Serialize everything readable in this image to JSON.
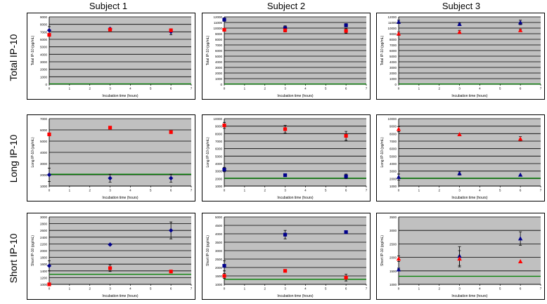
{
  "column_titles": [
    "Subject 1",
    "Subject 2",
    "Subject 3"
  ],
  "row_titles": [
    "Total IP-10",
    "Long IP-10",
    "Short IP-10"
  ],
  "colors": {
    "blue": "#00008b",
    "red": "#ff0000",
    "baseline": "#008000",
    "plot_bg": "#c0c0c0"
  },
  "chart_data": [
    {
      "type": "scatter",
      "subject": "Subject 1",
      "xlabel": "Incubation time (hours)",
      "ylabel": "Total IP-10 (pg/mL)",
      "xlim": [
        0,
        7
      ],
      "ylim": [
        0,
        9000
      ],
      "xticks": [
        0,
        1,
        2,
        3,
        4,
        5,
        6,
        7
      ],
      "yticks": [
        0,
        1000,
        2000,
        3000,
        4000,
        5000,
        6000,
        7000,
        8000,
        9000
      ],
      "blue": {
        "marker": "diamond",
        "points": [
          [
            0,
            7200,
            500
          ],
          [
            3,
            7400,
            0
          ],
          [
            6,
            7000,
            400
          ]
        ]
      },
      "red": {
        "marker": "square",
        "points": [
          [
            0,
            6600,
            200
          ],
          [
            3,
            7300,
            0
          ],
          [
            6,
            7200,
            0
          ]
        ]
      },
      "baseline": 50
    },
    {
      "type": "scatter",
      "subject": "Subject 2",
      "xlabel": "Incubation time (hours)",
      "ylabel": "Total IP-10 (pg/mL)",
      "xlim": [
        0,
        7
      ],
      "ylim": [
        0,
        12000
      ],
      "xticks": [
        0,
        1,
        2,
        3,
        4,
        5,
        6,
        7
      ],
      "yticks": [
        0,
        1000,
        2000,
        3000,
        4000,
        5000,
        6000,
        7000,
        8000,
        9000,
        10000,
        11000,
        12000
      ],
      "blue": {
        "marker": "square",
        "points": [
          [
            0,
            11500,
            300
          ],
          [
            3,
            10000,
            400
          ],
          [
            6,
            10500,
            300
          ]
        ]
      },
      "red": {
        "marker": "square",
        "points": [
          [
            0,
            9700,
            200
          ],
          [
            3,
            9600,
            300
          ],
          [
            6,
            9500,
            400
          ]
        ]
      },
      "baseline": 50
    },
    {
      "type": "scatter",
      "subject": "Subject 3",
      "xlabel": "Incubation time (hours)",
      "ylabel": "Total IP-10 (pg/mL)",
      "xlim": [
        0,
        7
      ],
      "ylim": [
        0,
        12000
      ],
      "xticks": [
        0,
        1,
        2,
        3,
        4,
        5,
        6,
        7
      ],
      "yticks": [
        0,
        1000,
        2000,
        3000,
        4000,
        5000,
        6000,
        7000,
        8000,
        9000,
        10000,
        11000,
        12000
      ],
      "blue": {
        "marker": "triangle",
        "points": [
          [
            0,
            11100,
            300
          ],
          [
            3,
            10700,
            200
          ],
          [
            6,
            11000,
            400
          ]
        ]
      },
      "red": {
        "marker": "triangle",
        "points": [
          [
            0,
            9000,
            300
          ],
          [
            3,
            9300,
            300
          ],
          [
            6,
            9600,
            200
          ]
        ]
      },
      "baseline": 50
    },
    {
      "type": "scatter",
      "subject": "Subject 1",
      "xlabel": "Incubation time (hours)",
      "ylabel": "Long IP-10 (pg/mL)",
      "xlim": [
        0,
        7
      ],
      "ylim": [
        1000,
        7000
      ],
      "xticks": [
        0,
        1,
        2,
        3,
        4,
        5,
        6,
        7
      ],
      "yticks": [
        1000,
        2000,
        3000,
        4000,
        5000,
        6000,
        7000
      ],
      "blue": {
        "marker": "diamond",
        "points": [
          [
            0,
            2000,
            600
          ],
          [
            3,
            1700,
            350
          ],
          [
            6,
            1700,
            350
          ]
        ]
      },
      "red": {
        "marker": "square",
        "points": [
          [
            0,
            5600,
            100
          ],
          [
            3,
            6200,
            0
          ],
          [
            6,
            5800,
            0
          ]
        ]
      },
      "baseline": 2050
    },
    {
      "type": "scatter",
      "subject": "Subject 2",
      "xlabel": "Incubation time (hours)",
      "ylabel": "Long IP-10 (pg/mL)",
      "xlim": [
        0,
        7
      ],
      "ylim": [
        1000,
        10000
      ],
      "xticks": [
        0,
        1,
        2,
        3,
        4,
        5,
        6,
        7
      ],
      "yticks": [
        1000,
        2000,
        3000,
        4000,
        5000,
        6000,
        7000,
        8000,
        9000,
        10000
      ],
      "blue": {
        "marker": "square",
        "points": [
          [
            0,
            3200,
            300
          ],
          [
            3,
            2450,
            100
          ],
          [
            6,
            2300,
            300
          ]
        ]
      },
      "red": {
        "marker": "square",
        "points": [
          [
            0,
            9100,
            400
          ],
          [
            3,
            8600,
            500
          ],
          [
            6,
            7700,
            600
          ]
        ]
      },
      "baseline": 2050
    },
    {
      "type": "scatter",
      "subject": "Subject 3",
      "xlabel": "Incubation time (hours)",
      "ylabel": "Long IP-10 (pg/mL)",
      "xlim": [
        0,
        7
      ],
      "ylim": [
        1000,
        10000
      ],
      "xticks": [
        0,
        1,
        2,
        3,
        4,
        5,
        6,
        7
      ],
      "yticks": [
        1000,
        2000,
        3000,
        4000,
        5000,
        6000,
        7000,
        8000,
        9000,
        10000
      ],
      "blue": {
        "marker": "triangle",
        "points": [
          [
            0,
            2200,
            400
          ],
          [
            3,
            2700,
            250
          ],
          [
            6,
            2500,
            0
          ]
        ]
      },
      "red": {
        "marker": "triangle",
        "points": [
          [
            0,
            8600,
            350
          ],
          [
            3,
            7900,
            0
          ],
          [
            6,
            7300,
            300
          ]
        ]
      },
      "baseline": 2050
    },
    {
      "type": "scatter",
      "subject": "Subject 1",
      "xlabel": "Incubation time (hours)",
      "ylabel": "Short IP-10 (pg/mL)",
      "xlim": [
        0,
        7
      ],
      "ylim": [
        1000,
        3000
      ],
      "xticks": [
        0,
        1,
        2,
        3,
        4,
        5,
        6,
        7
      ],
      "yticks": [
        1000,
        1200,
        1400,
        1600,
        1800,
        2000,
        2200,
        2400,
        2600,
        2800,
        3000
      ],
      "blue": {
        "marker": "diamond",
        "points": [
          [
            0,
            1550,
            150
          ],
          [
            3,
            2180,
            0
          ],
          [
            6,
            2600,
            250
          ]
        ]
      },
      "red": {
        "marker": "square",
        "points": [
          [
            0,
            1000,
            0
          ],
          [
            3,
            1480,
            100
          ],
          [
            6,
            1380,
            0
          ]
        ]
      },
      "baseline": 1300
    },
    {
      "type": "scatter",
      "subject": "Subject 2",
      "xlabel": "Incubation time (hours)",
      "ylabel": "Short IP-10 (pg/mL)",
      "xlim": [
        0,
        7
      ],
      "ylim": [
        1000,
        5000
      ],
      "xticks": [
        0,
        1,
        2,
        3,
        4,
        5,
        6,
        7
      ],
      "yticks": [
        1000,
        1500,
        2000,
        2500,
        3000,
        3500,
        4000,
        4500,
        5000
      ],
      "blue": {
        "marker": "square",
        "points": [
          [
            0,
            2100,
            300
          ],
          [
            3,
            3950,
            250
          ],
          [
            6,
            4100,
            0
          ]
        ]
      },
      "red": {
        "marker": "square",
        "points": [
          [
            0,
            1500,
            150
          ],
          [
            3,
            1800,
            0
          ],
          [
            6,
            1400,
            200
          ]
        ]
      },
      "baseline": 1300
    },
    {
      "type": "scatter",
      "subject": "Subject 3",
      "xlabel": "Incubation time (hours)",
      "ylabel": "Short IP-10 (pg/mL)",
      "xlim": [
        0,
        7
      ],
      "ylim": [
        1000,
        3500
      ],
      "xticks": [
        0,
        1,
        2,
        3,
        4,
        5,
        6,
        7
      ],
      "yticks": [
        1000,
        1500,
        2000,
        2500,
        3000,
        3500
      ],
      "blue": {
        "marker": "triangle",
        "points": [
          [
            0,
            1550,
            50
          ],
          [
            3,
            2050,
            350
          ],
          [
            6,
            2700,
            250
          ]
        ]
      },
      "red": {
        "marker": "triangle",
        "points": [
          [
            0,
            1950,
            100
          ],
          [
            3,
            1950,
            300
          ],
          [
            6,
            1850,
            0
          ]
        ]
      },
      "baseline": 1300
    }
  ]
}
